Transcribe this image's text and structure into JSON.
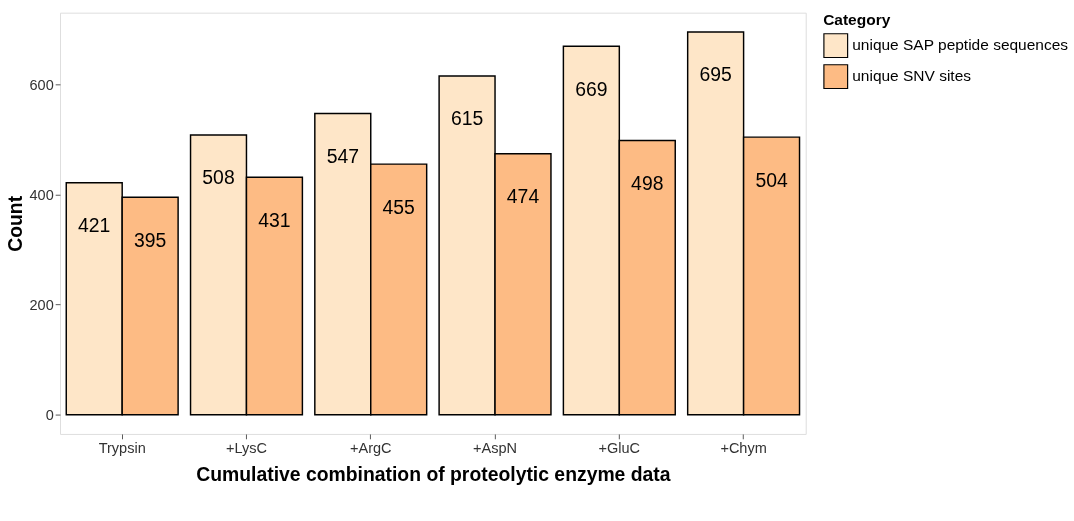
{
  "chart_data": {
    "type": "bar",
    "xlabel": "Cumulative combination of proteolytic enzyme data",
    "ylabel": "Count",
    "legend_title": "Category",
    "categories": [
      "Trypsin",
      "+LysC",
      "+ArgC",
      "+AspN",
      "+GluC",
      "+Chym"
    ],
    "series": [
      {
        "name": "unique SAP peptide sequences",
        "color": "#fee6c8",
        "values": [
          421,
          508,
          547,
          615,
          669,
          695
        ]
      },
      {
        "name": "unique SNV sites",
        "color": "#fdbb84",
        "values": [
          395,
          431,
          455,
          474,
          498,
          504
        ]
      }
    ],
    "ylim": [
      -35,
      730
    ],
    "yticks": [
      0,
      200,
      400,
      600
    ],
    "grid": false,
    "legend": "right",
    "data_labels": true
  }
}
